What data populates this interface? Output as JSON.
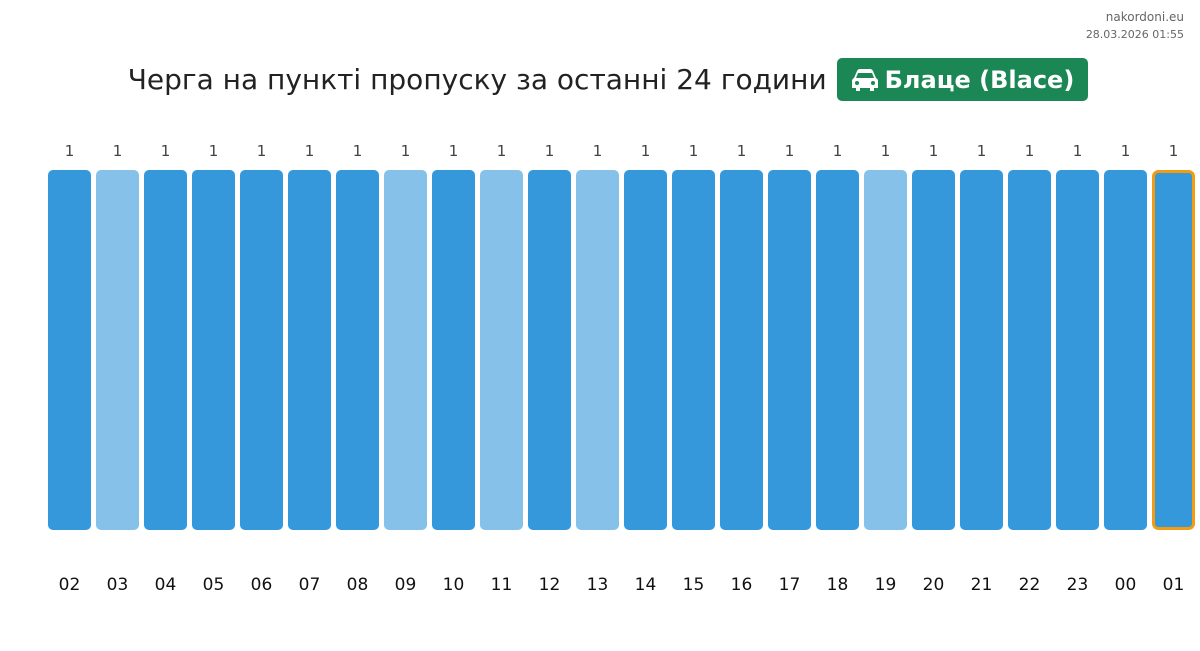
{
  "brand": {
    "site": "nakordoni.eu",
    "timestamp": "28.03.2026 01:55"
  },
  "header": {
    "title": "Черга на пункті пропуску за останні 24 години",
    "badge_label": "Блаце (Blace)",
    "badge_icon": "car-icon",
    "badge_color": "#1a8754"
  },
  "chart_data": {
    "type": "bar",
    "categories": [
      "02",
      "03",
      "04",
      "05",
      "06",
      "07",
      "08",
      "09",
      "10",
      "11",
      "12",
      "13",
      "14",
      "15",
      "16",
      "17",
      "18",
      "19",
      "20",
      "21",
      "22",
      "23",
      "00",
      "01"
    ],
    "values": [
      1,
      1,
      1,
      1,
      1,
      1,
      1,
      1,
      1,
      1,
      1,
      1,
      1,
      1,
      1,
      1,
      1,
      1,
      1,
      1,
      1,
      1,
      1,
      1
    ],
    "shade": [
      "dark",
      "light",
      "dark",
      "dark",
      "dark",
      "dark",
      "dark",
      "light",
      "dark",
      "light",
      "dark",
      "light",
      "dark",
      "dark",
      "dark",
      "dark",
      "dark",
      "light",
      "dark",
      "dark",
      "dark",
      "dark",
      "dark",
      "dark"
    ],
    "highlighted_category": "01",
    "colors": {
      "dark": "#3498db",
      "light": "#85c1e9",
      "highlight_border": "#f39c12"
    },
    "ylim": [
      0,
      1
    ],
    "grid": false
  }
}
